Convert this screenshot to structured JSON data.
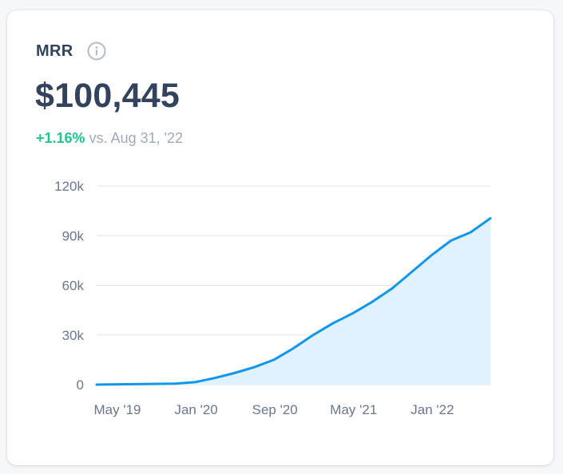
{
  "card": {
    "title": "MRR",
    "value": "$100,445",
    "change_pct": "+1.16%",
    "change_vs": "vs. Aug 31, '22"
  },
  "icons": {
    "info": "info-circle-icon"
  },
  "colors": {
    "line": "#0f97ec",
    "area": "#e1f1fd",
    "positive": "#1fc68f",
    "text": "#33435c",
    "muted": "#a0a9b8",
    "grid": "#e1e5eb"
  },
  "chart_data": {
    "type": "area",
    "title": "",
    "xlabel": "",
    "ylabel": "",
    "y_ticks": [
      "0",
      "30k",
      "60k",
      "90k",
      "120k"
    ],
    "x_ticks": [
      "May '19",
      "Jan '20",
      "Sep '20",
      "May '21",
      "Jan '22"
    ],
    "ylim": [
      0,
      120000
    ],
    "grid": "horizontal",
    "series": [
      {
        "x": [
          "2019-05",
          "2019-09",
          "2020-01",
          "2020-03",
          "2020-05",
          "2020-07",
          "2020-09",
          "2020-11",
          "2021-01",
          "2021-03",
          "2021-05",
          "2021-07",
          "2021-09",
          "2021-11",
          "2022-01",
          "2022-03",
          "2022-05",
          "2022-07",
          "2022-09"
        ],
        "values": [
          0,
          300,
          600,
          1500,
          4000,
          7000,
          10500,
          15000,
          22000,
          30000,
          37000,
          43000,
          50000,
          58000,
          68000,
          78000,
          87000,
          92000,
          100445
        ]
      }
    ]
  }
}
